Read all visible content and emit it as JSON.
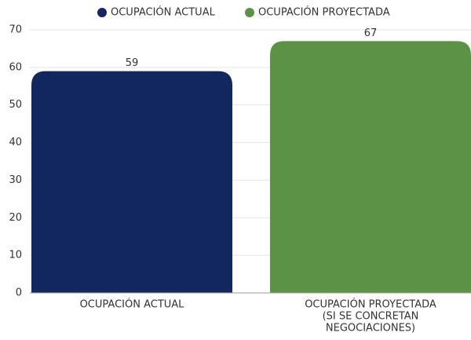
{
  "chart_data": {
    "type": "bar",
    "categories": [
      [
        "OCUPACIÓN ACTUAL"
      ],
      [
        "OCUPACIÓN PROYECTADA",
        "(SI SE CONCRETAN",
        "NEGOCIACIONES)"
      ]
    ],
    "series": [
      {
        "name": "OCUPACIÓN ACTUAL",
        "color": "#13275f",
        "values": [
          59,
          null
        ]
      },
      {
        "name": "OCUPACIÓN PROYECTADA",
        "color": "#5c9245",
        "values": [
          null,
          67
        ]
      }
    ],
    "ylim": [
      0,
      70
    ],
    "yticks": [
      0,
      10,
      20,
      30,
      40,
      50,
      60,
      70
    ],
    "grid": true,
    "legend": "top"
  }
}
